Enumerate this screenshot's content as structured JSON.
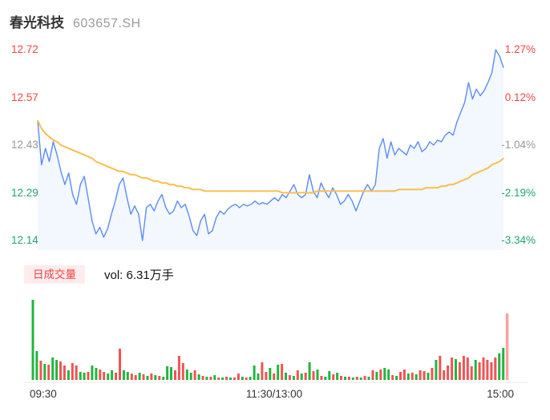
{
  "header": {
    "name": "春光科技",
    "code": "603657.SH"
  },
  "colors": {
    "up": "#f04747",
    "down": "#23a17a",
    "flat": "#999999",
    "price_line": "#5b8cf2",
    "avg_line": "#f6bf4d",
    "area_fill": "rgba(91,140,242,0.07)",
    "vol_up": "#f15353",
    "vol_down": "#22b53e",
    "vol_close": "#fba0a0",
    "badge_bg": "#fdecec",
    "badge_text": "#f04141",
    "axis_line": "#e9e9e9"
  },
  "volume_header": {
    "badge": "日成交量",
    "label": "vol: 6.31万手"
  },
  "chart_data": {
    "type": "line",
    "prev_close": 12.56,
    "ylim": [
      12.14,
      12.72
    ],
    "pct_lim": [
      -3.34,
      1.27
    ],
    "grid": false,
    "left_axis": [
      {
        "text": "12.72",
        "tone": "up"
      },
      {
        "text": "12.57",
        "tone": "up"
      },
      {
        "text": "12.43",
        "tone": "flat"
      },
      {
        "text": "12.29",
        "tone": "down"
      },
      {
        "text": "12.14",
        "tone": "down"
      }
    ],
    "right_axis": [
      {
        "text": "1.27%",
        "tone": "up"
      },
      {
        "text": "0.12%",
        "tone": "up"
      },
      {
        "text": "-1.04%",
        "tone": "flat"
      },
      {
        "text": "-2.19%",
        "tone": "down"
      },
      {
        "text": "-3.34%",
        "tone": "down"
      }
    ],
    "x_labels": [
      "09:30",
      "11:30/13:00",
      "15:00"
    ],
    "series": [
      {
        "name": "price",
        "color_key": "price_line",
        "values": [
          12.505,
          12.37,
          12.42,
          12.38,
          12.44,
          12.4,
          12.35,
          12.31,
          12.345,
          12.28,
          12.25,
          12.31,
          12.335,
          12.27,
          12.2,
          12.16,
          12.18,
          12.15,
          12.175,
          12.22,
          12.26,
          12.31,
          12.33,
          12.27,
          12.22,
          12.245,
          12.22,
          12.14,
          12.24,
          12.25,
          12.23,
          12.26,
          12.28,
          12.24,
          12.22,
          12.23,
          12.26,
          12.24,
          12.25,
          12.215,
          12.17,
          12.155,
          12.2,
          12.22,
          12.16,
          12.17,
          12.21,
          12.23,
          12.22,
          12.235,
          12.245,
          12.25,
          12.24,
          12.25,
          12.245,
          12.25,
          12.26,
          12.25,
          12.255,
          12.25,
          12.26,
          12.27,
          12.26,
          12.28,
          12.27,
          12.29,
          12.31,
          12.28,
          12.27,
          12.28,
          12.34,
          12.29,
          12.27,
          12.315,
          12.29,
          12.27,
          12.3,
          12.28,
          12.25,
          12.26,
          12.28,
          12.26,
          12.23,
          12.26,
          12.29,
          12.31,
          12.29,
          12.31,
          12.42,
          12.45,
          12.39,
          12.44,
          12.4,
          12.42,
          12.41,
          12.4,
          12.43,
          12.42,
          12.44,
          12.41,
          12.42,
          12.44,
          12.43,
          12.445,
          12.44,
          12.46,
          12.47,
          12.46,
          12.5,
          12.53,
          12.56,
          12.62,
          12.57,
          12.6,
          12.58,
          12.595,
          12.62,
          12.65,
          12.72,
          12.7,
          12.665
        ]
      },
      {
        "name": "avg",
        "color_key": "avg_line",
        "values": [
          12.505,
          12.48,
          12.465,
          12.455,
          12.445,
          12.44,
          12.43,
          12.425,
          12.42,
          12.415,
          12.41,
          12.405,
          12.4,
          12.395,
          12.39,
          12.38,
          12.375,
          12.37,
          12.365,
          12.36,
          12.355,
          12.35,
          12.35,
          12.345,
          12.34,
          12.34,
          12.335,
          12.33,
          12.33,
          12.325,
          12.32,
          12.32,
          12.315,
          12.315,
          12.31,
          12.31,
          12.305,
          12.305,
          12.3,
          12.3,
          12.295,
          12.295,
          12.295,
          12.29,
          12.29,
          12.29,
          12.29,
          12.29,
          12.29,
          12.29,
          12.29,
          12.29,
          12.29,
          12.29,
          12.29,
          12.29,
          12.29,
          12.29,
          12.29,
          12.29,
          12.29,
          12.29,
          12.29,
          12.285,
          12.285,
          12.285,
          12.285,
          12.285,
          12.285,
          12.285,
          12.285,
          12.285,
          12.29,
          12.29,
          12.29,
          12.29,
          12.29,
          12.29,
          12.29,
          12.29,
          12.29,
          12.29,
          12.29,
          12.29,
          12.29,
          12.29,
          12.29,
          12.29,
          12.29,
          12.29,
          12.29,
          12.29,
          12.29,
          12.295,
          12.295,
          12.295,
          12.295,
          12.295,
          12.295,
          12.295,
          12.3,
          12.3,
          12.3,
          12.3,
          12.305,
          12.305,
          12.31,
          12.31,
          12.315,
          12.32,
          12.325,
          12.33,
          12.34,
          12.345,
          12.35,
          12.355,
          12.36,
          12.37,
          12.375,
          12.38,
          12.39
        ]
      }
    ],
    "volume_bars": [
      [
        100,
        "d"
      ],
      [
        36,
        "d"
      ],
      [
        24,
        "u"
      ],
      [
        20,
        "d"
      ],
      [
        19,
        "u"
      ],
      [
        28,
        "d"
      ],
      [
        25,
        "d"
      ],
      [
        23,
        "u"
      ],
      [
        18,
        "u"
      ],
      [
        12,
        "d"
      ],
      [
        21,
        "u"
      ],
      [
        18,
        "u"
      ],
      [
        10,
        "d"
      ],
      [
        9,
        "d"
      ],
      [
        10,
        "u"
      ],
      [
        18,
        "d"
      ],
      [
        15,
        "d"
      ],
      [
        13,
        "u"
      ],
      [
        10,
        "u"
      ],
      [
        8,
        "d"
      ],
      [
        12,
        "d"
      ],
      [
        9,
        "u"
      ],
      [
        39,
        "u"
      ],
      [
        12,
        "d"
      ],
      [
        10,
        "d"
      ],
      [
        8,
        "u"
      ],
      [
        6,
        "u"
      ],
      [
        9,
        "d"
      ],
      [
        7,
        "u"
      ],
      [
        5,
        "d"
      ],
      [
        8,
        "u"
      ],
      [
        6,
        "d"
      ],
      [
        5,
        "u"
      ],
      [
        4,
        "d"
      ],
      [
        17,
        "d"
      ],
      [
        16,
        "d"
      ],
      [
        12,
        "u"
      ],
      [
        30,
        "u"
      ],
      [
        21,
        "u"
      ],
      [
        13,
        "d"
      ],
      [
        9,
        "d"
      ],
      [
        12,
        "u"
      ],
      [
        7,
        "d"
      ],
      [
        5,
        "u"
      ],
      [
        4,
        "d"
      ],
      [
        4,
        "u"
      ],
      [
        6,
        "d"
      ],
      [
        3,
        "u"
      ],
      [
        3,
        "d"
      ],
      [
        4,
        "u"
      ],
      [
        3,
        "d"
      ],
      [
        3,
        "u"
      ],
      [
        8,
        "u"
      ],
      [
        4,
        "d"
      ],
      [
        3,
        "u"
      ],
      [
        4,
        "d"
      ],
      [
        18,
        "d"
      ],
      [
        8,
        "d"
      ],
      [
        22,
        "u"
      ],
      [
        10,
        "u"
      ],
      [
        15,
        "d"
      ],
      [
        8,
        "u"
      ],
      [
        19,
        "d"
      ],
      [
        20,
        "u"
      ],
      [
        9,
        "d"
      ],
      [
        6,
        "u"
      ],
      [
        5,
        "d"
      ],
      [
        12,
        "u"
      ],
      [
        8,
        "d"
      ],
      [
        9,
        "u"
      ],
      [
        22,
        "d"
      ],
      [
        11,
        "u"
      ],
      [
        13,
        "d"
      ],
      [
        5,
        "u"
      ],
      [
        4,
        "d"
      ],
      [
        11,
        "d"
      ],
      [
        7,
        "u"
      ],
      [
        9,
        "d"
      ],
      [
        5,
        "u"
      ],
      [
        4,
        "d"
      ],
      [
        4,
        "u"
      ],
      [
        3,
        "d"
      ],
      [
        4,
        "u"
      ],
      [
        3,
        "d"
      ],
      [
        5,
        "u"
      ],
      [
        4,
        "d"
      ],
      [
        12,
        "u"
      ],
      [
        10,
        "d"
      ],
      [
        13,
        "u"
      ],
      [
        15,
        "d"
      ],
      [
        13,
        "d"
      ],
      [
        6,
        "u"
      ],
      [
        5,
        "d"
      ],
      [
        10,
        "u"
      ],
      [
        13,
        "u"
      ],
      [
        8,
        "d"
      ],
      [
        9,
        "u"
      ],
      [
        7,
        "d"
      ],
      [
        12,
        "u"
      ],
      [
        11,
        "u"
      ],
      [
        9,
        "d"
      ],
      [
        15,
        "u"
      ],
      [
        25,
        "d"
      ],
      [
        30,
        "u"
      ],
      [
        12,
        "u"
      ],
      [
        18,
        "u"
      ],
      [
        28,
        "u"
      ],
      [
        26,
        "d"
      ],
      [
        22,
        "u"
      ],
      [
        30,
        "u"
      ],
      [
        28,
        "u"
      ],
      [
        17,
        "u"
      ],
      [
        25,
        "d"
      ],
      [
        22,
        "u"
      ],
      [
        28,
        "u"
      ],
      [
        25,
        "u"
      ],
      [
        22,
        "u"
      ],
      [
        28,
        "u"
      ],
      [
        33,
        "d"
      ],
      [
        40,
        "d"
      ]
    ],
    "close_auction_bar": {
      "v": 83,
      "tone": "close"
    }
  }
}
